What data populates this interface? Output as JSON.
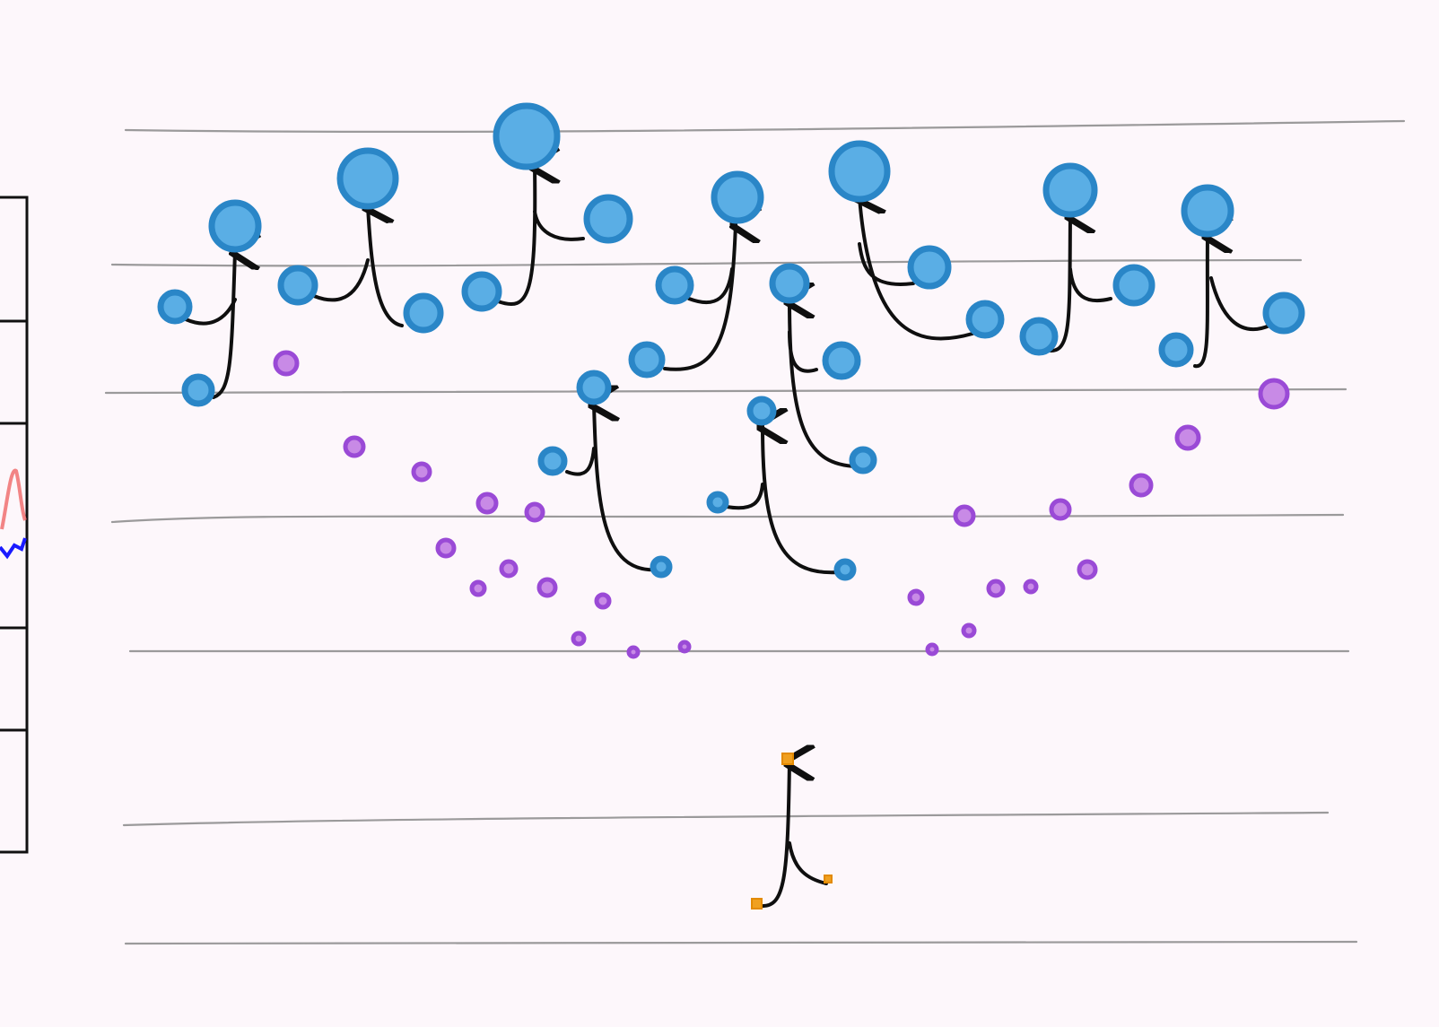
{
  "palette": {
    "background": "#fdf7fb",
    "blue": "#5aaee5",
    "blue_stroke": "#2a86c7",
    "purple": "#c88ae6",
    "purple_stroke": "#9a4ad6",
    "orange": "#f0a020",
    "arrow": "#0f0f0f",
    "guide": "#8a8a8a"
  },
  "left_panel": {
    "series_colors": [
      "#f07070",
      "#1a1aff"
    ]
  },
  "levels": 7
}
